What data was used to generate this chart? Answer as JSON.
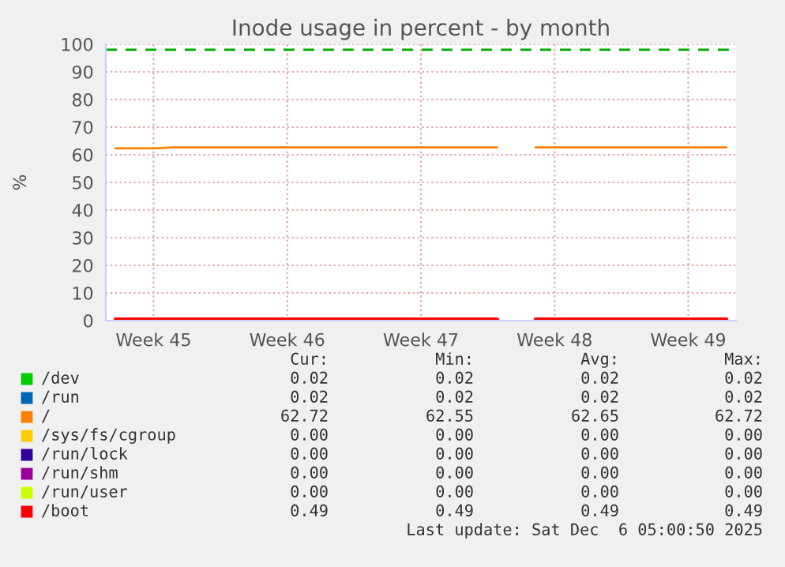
{
  "chart_data": {
    "type": "line",
    "title": "Inode usage in percent - by month",
    "ylabel": "%",
    "categories": [
      null,
      null,
      "Week 45",
      null,
      null,
      null,
      null,
      null,
      null,
      "Week 46",
      null,
      null,
      null,
      null,
      null,
      null,
      "Week 47",
      null,
      null,
      null,
      null,
      null,
      null,
      "Week 48",
      null,
      null,
      null,
      null,
      null,
      null,
      "Week 49",
      null,
      null
    ],
    "ylim": [
      0,
      100
    ],
    "yticks": [
      0,
      10,
      20,
      30,
      40,
      50,
      60,
      70,
      80,
      90,
      100
    ],
    "grid": true,
    "legend": "bottom",
    "marker": "none",
    "line_style": "solid",
    "series": [
      {
        "name": "/dev",
        "color": "#00cc00",
        "values": [
          null,
          null,
          null,
          null,
          null,
          null,
          null,
          null,
          null,
          null,
          null,
          null,
          null,
          null,
          null,
          null,
          null,
          null,
          null,
          null,
          null,
          null,
          null,
          null,
          null,
          null,
          null,
          null,
          null,
          null,
          null,
          null,
          null
        ]
      },
      {
        "name": "/run",
        "color": "#0066b3",
        "values": [
          null,
          null,
          null,
          null,
          null,
          null,
          null,
          null,
          null,
          null,
          null,
          null,
          null,
          null,
          null,
          null,
          null,
          null,
          null,
          null,
          null,
          null,
          null,
          null,
          null,
          null,
          null,
          null,
          null,
          null,
          null,
          null,
          null
        ]
      },
      {
        "name": "/",
        "color": "#ff8000",
        "values": [
          62.3,
          62.3,
          62.3,
          62.7,
          62.7,
          62.7,
          62.7,
          62.7,
          62.7,
          62.7,
          62.7,
          62.7,
          62.7,
          62.7,
          62.7,
          62.7,
          62.7,
          62.7,
          62.7,
          62.7,
          62.7,
          null,
          62.7,
          62.7,
          62.7,
          62.7,
          62.7,
          62.7,
          62.7,
          62.7,
          62.7,
          62.7,
          62.7
        ]
      },
      {
        "name": "/sys/fs/cgroup",
        "color": "#ffcc00",
        "values": [
          null,
          null,
          null,
          null,
          null,
          null,
          null,
          null,
          null,
          null,
          null,
          null,
          null,
          null,
          null,
          null,
          null,
          null,
          null,
          null,
          null,
          null,
          null,
          null,
          null,
          null,
          null,
          null,
          null,
          null,
          null,
          null,
          null
        ]
      },
      {
        "name": "/run/lock",
        "color": "#330099",
        "values": [
          null,
          null,
          null,
          null,
          null,
          null,
          null,
          null,
          null,
          null,
          null,
          null,
          null,
          null,
          null,
          null,
          null,
          null,
          null,
          null,
          null,
          null,
          null,
          null,
          null,
          null,
          null,
          null,
          null,
          null,
          null,
          null,
          null
        ]
      },
      {
        "name": "/run/shm",
        "color": "#990099",
        "values": [
          null,
          null,
          null,
          null,
          null,
          null,
          null,
          null,
          null,
          null,
          null,
          null,
          null,
          null,
          null,
          null,
          null,
          null,
          null,
          null,
          null,
          null,
          null,
          null,
          null,
          null,
          null,
          null,
          null,
          null,
          null,
          null,
          null
        ]
      },
      {
        "name": "/run/user",
        "color": "#ccff00",
        "values": [
          null,
          null,
          null,
          null,
          null,
          null,
          null,
          null,
          null,
          null,
          null,
          null,
          null,
          null,
          null,
          null,
          null,
          null,
          null,
          null,
          null,
          null,
          null,
          null,
          null,
          null,
          null,
          null,
          null,
          null,
          null,
          null,
          null
        ]
      },
      {
        "name": "/boot",
        "color": "#ff0000",
        "values": [
          0.5,
          0.5,
          0.5,
          0.5,
          0.5,
          0.5,
          0.5,
          0.5,
          0.5,
          0.5,
          0.5,
          0.5,
          0.5,
          0.5,
          0.5,
          0.5,
          0.5,
          0.5,
          0.5,
          0.5,
          0.5,
          null,
          0.5,
          0.5,
          0.5,
          0.5,
          0.5,
          0.5,
          0.5,
          0.5,
          0.5,
          0.5,
          0.5
        ]
      }
    ],
    "ref_lines": [
      {
        "axis": "y",
        "value": 98,
        "color": "#00aa00",
        "line_style": "dashed"
      }
    ],
    "annotations": [
      "Cur:",
      "Min:",
      "Avg:",
      "Max:",
      "0.02",
      "0.02",
      "0.02",
      "0.02",
      "0.02",
      "0.02",
      "0.02",
      "0.02",
      "62.72",
      "62.55",
      "62.65",
      "62.72",
      "0.00",
      "0.00",
      "0.00",
      "0.00",
      "0.00",
      "0.00",
      "0.00",
      "0.00",
      "0.00",
      "0.00",
      "0.00",
      "0.00",
      "0.00",
      "0.00",
      "0.00",
      "0.00",
      "0.49",
      "0.49",
      "0.49",
      "0.49",
      "Last update: Sat Dec  6 05:00:50 2025"
    ]
  }
}
